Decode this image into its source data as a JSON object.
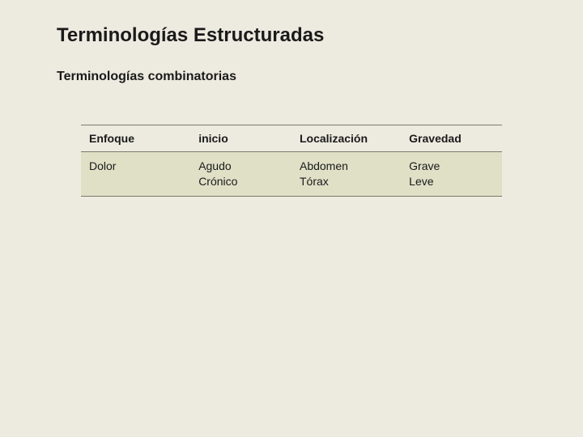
{
  "title": "Terminologías Estructuradas",
  "subtitle": "Terminologías combinatorias",
  "table": {
    "type": "table",
    "background_color": "#edebe0",
    "header_bg": "#edebe0",
    "row_bg": "#dfe0c6",
    "border_color": "#7a7a6a",
    "font_size": 14,
    "columns": [
      {
        "label": "Enfoque",
        "width_pct": 26
      },
      {
        "label": "inicio",
        "width_pct": 24
      },
      {
        "label": "Localización",
        "width_pct": 26
      },
      {
        "label": "Gravedad",
        "width_pct": 24
      }
    ],
    "rows": [
      {
        "cells": [
          {
            "lines": [
              "Dolor"
            ]
          },
          {
            "lines": [
              "Agudo",
              "Crónico"
            ]
          },
          {
            "lines": [
              "Abdomen",
              "Tórax"
            ]
          },
          {
            "lines": [
              "Grave",
              "Leve"
            ]
          }
        ]
      }
    ]
  }
}
